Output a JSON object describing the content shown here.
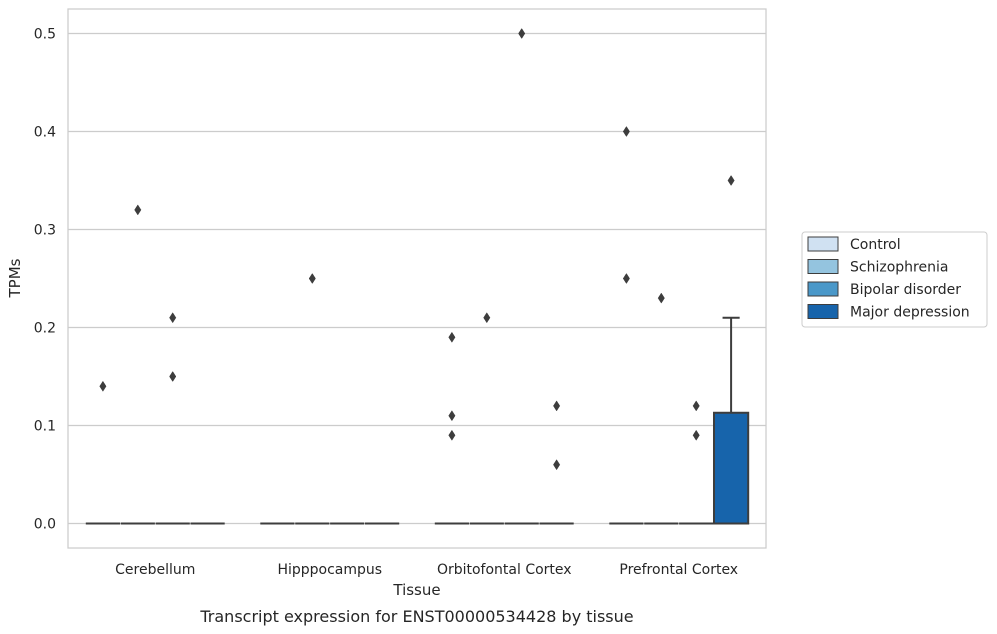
{
  "chart_data": {
    "type": "box",
    "caption": "Transcript expression for ENST00000534428 by tissue",
    "xlabel": "Tissue",
    "ylabel": "TPMs",
    "ylim": [
      -0.025,
      0.525
    ],
    "yticks": [
      0.0,
      0.1,
      0.2,
      0.3,
      0.4,
      0.5
    ],
    "ytick_labels": [
      "0.0",
      "0.1",
      "0.2",
      "0.3",
      "0.4",
      "0.5"
    ],
    "categories": [
      "Cerebellum",
      "Hipppocampus",
      "Orbitofontal Cortex",
      "Prefrontal Cortex"
    ],
    "grid": "horizontal",
    "legend_position": "right",
    "series": [
      {
        "name": "Control",
        "color": "#d0e1f2",
        "boxes": [
          {
            "q1": 0,
            "median": 0,
            "q3": 0,
            "whisker_low": 0,
            "whisker_high": 0,
            "outliers": [
              0.14
            ]
          },
          {
            "q1": 0,
            "median": 0,
            "q3": 0,
            "whisker_low": 0,
            "whisker_high": 0,
            "outliers": []
          },
          {
            "q1": 0,
            "median": 0,
            "q3": 0,
            "whisker_low": 0,
            "whisker_high": 0,
            "outliers": [
              0.19,
              0.11,
              0.09
            ]
          },
          {
            "q1": 0,
            "median": 0,
            "q3": 0,
            "whisker_low": 0,
            "whisker_high": 0,
            "outliers": [
              0.4,
              0.25
            ]
          }
        ]
      },
      {
        "name": "Schizophrenia",
        "color": "#94c4df",
        "boxes": [
          {
            "q1": 0,
            "median": 0,
            "q3": 0,
            "whisker_low": 0,
            "whisker_high": 0,
            "outliers": [
              0.32
            ]
          },
          {
            "q1": 0,
            "median": 0,
            "q3": 0,
            "whisker_low": 0,
            "whisker_high": 0,
            "outliers": [
              0.25
            ]
          },
          {
            "q1": 0,
            "median": 0,
            "q3": 0,
            "whisker_low": 0,
            "whisker_high": 0,
            "outliers": [
              0.21
            ]
          },
          {
            "q1": 0,
            "median": 0,
            "q3": 0,
            "whisker_low": 0,
            "whisker_high": 0,
            "outliers": [
              0.23
            ]
          }
        ]
      },
      {
        "name": "Bipolar disorder",
        "color": "#4a98c9",
        "boxes": [
          {
            "q1": 0,
            "median": 0,
            "q3": 0,
            "whisker_low": 0,
            "whisker_high": 0,
            "outliers": [
              0.21,
              0.15
            ]
          },
          {
            "q1": 0,
            "median": 0,
            "q3": 0,
            "whisker_low": 0,
            "whisker_high": 0,
            "outliers": []
          },
          {
            "q1": 0,
            "median": 0,
            "q3": 0,
            "whisker_low": 0,
            "whisker_high": 0,
            "outliers": [
              0.5
            ]
          },
          {
            "q1": 0,
            "median": 0,
            "q3": 0,
            "whisker_low": 0,
            "whisker_high": 0,
            "outliers": [
              0.12,
              0.09
            ]
          }
        ]
      },
      {
        "name": "Major depression",
        "color": "#1764ab",
        "boxes": [
          {
            "q1": 0,
            "median": 0,
            "q3": 0,
            "whisker_low": 0,
            "whisker_high": 0,
            "outliers": []
          },
          {
            "q1": 0,
            "median": 0,
            "q3": 0,
            "whisker_low": 0,
            "whisker_high": 0,
            "outliers": []
          },
          {
            "q1": 0,
            "median": 0,
            "q3": 0,
            "whisker_low": 0,
            "whisker_high": 0,
            "outliers": [
              0.12,
              0.06
            ]
          },
          {
            "q1": 0,
            "median": 0,
            "q3": 0.113,
            "whisker_low": 0,
            "whisker_high": 0.21,
            "outliers": [
              0.35
            ]
          }
        ]
      }
    ]
  }
}
